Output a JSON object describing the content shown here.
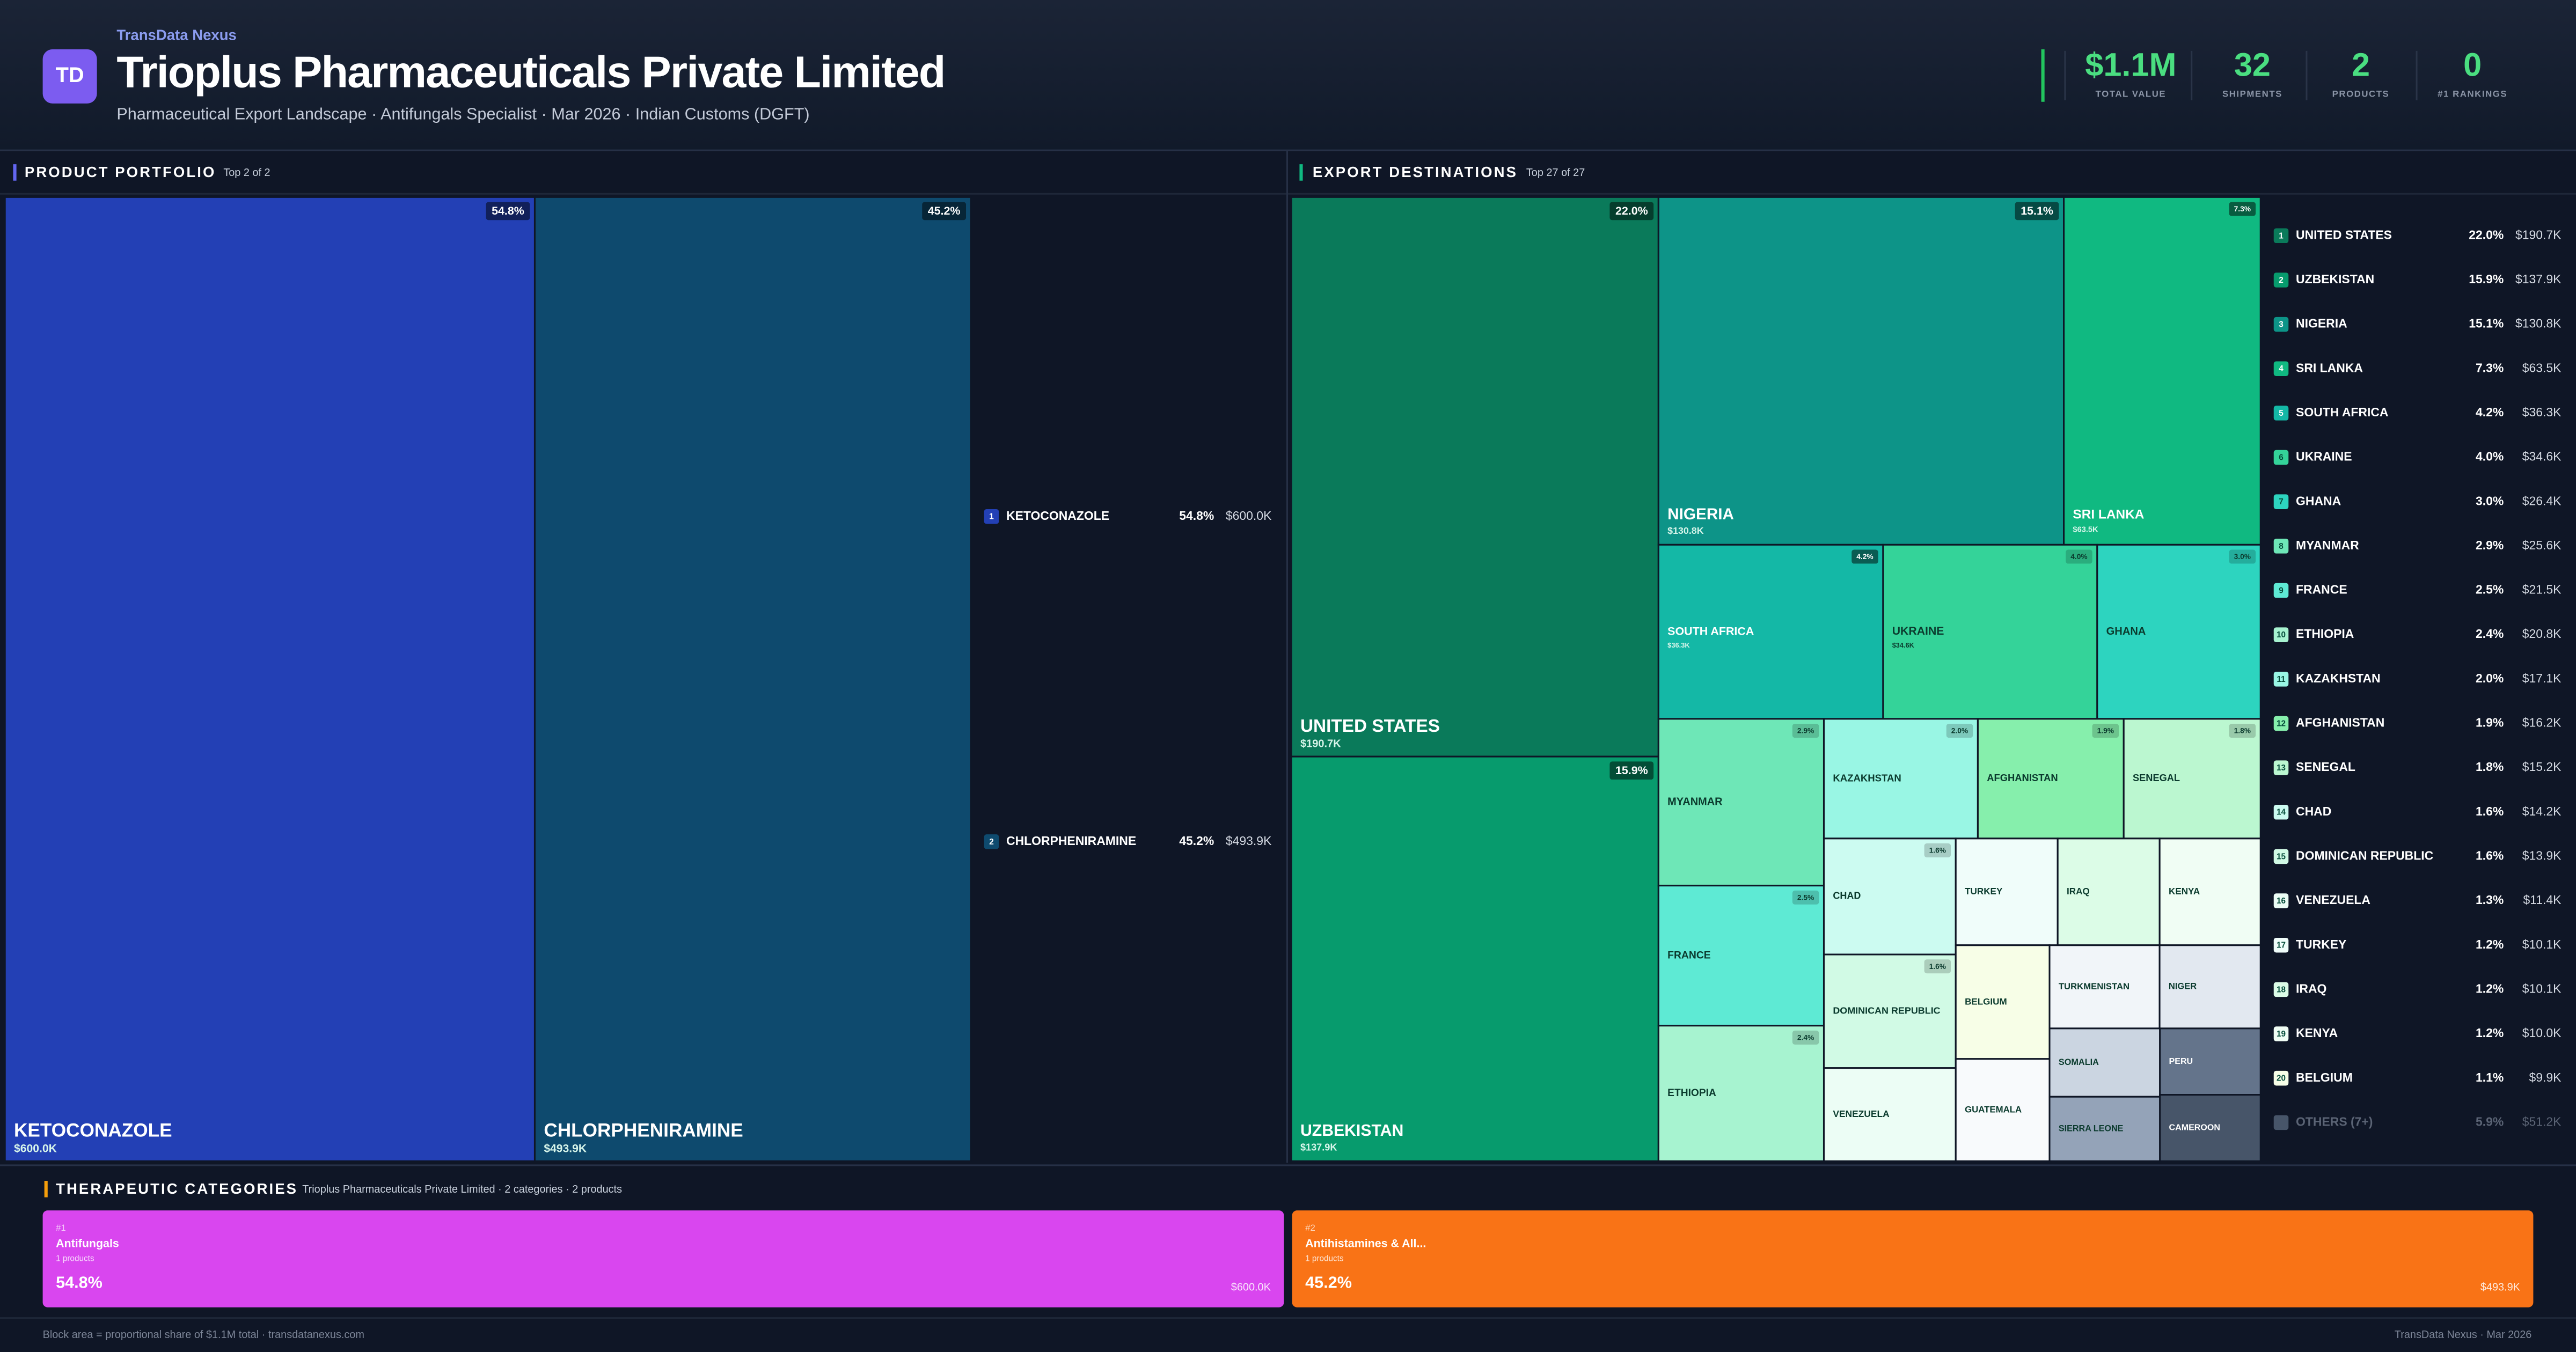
{
  "header": {
    "brand": "TransData Nexus",
    "logo": "TD",
    "title": "Trioplus Pharmaceuticals Private Limited",
    "subtitle": "Pharmaceutical Export Landscape · Antifungals Specialist · Mar 2026 · Indian Customs (DGFT)"
  },
  "kpis": [
    {
      "value": 1100000,
      "value_label": "$1.1M",
      "label": "TOTAL VALUE"
    },
    {
      "value": 32,
      "label": "SHIPMENTS"
    },
    {
      "value": 2,
      "label": "PRODUCTS"
    },
    {
      "value": 0,
      "label": "#1 RANKINGS"
    }
  ],
  "chart_data": [
    {
      "type": "treemap",
      "title": "PRODUCT PORTFOLIO",
      "subtitle": "Top 2 of 2",
      "categories": [
        "KETOCONAZOLE",
        "CHLORPHENIRAMINE"
      ],
      "values": [
        600000,
        493900
      ],
      "value_labels": [
        "$600.0K",
        "$493.9K"
      ],
      "shares": [
        54.8,
        45.2
      ],
      "share_labels": [
        "54.8%",
        "45.2%"
      ],
      "ranks": [
        1,
        2
      ],
      "colors": [
        "#2340b5",
        "#0e4a6e"
      ]
    },
    {
      "type": "treemap",
      "title": "EXPORT DESTINATIONS",
      "subtitle": "Top 27 of 27",
      "categories": [
        "UNITED STATES",
        "UZBEKISTAN",
        "NIGERIA",
        "SRI LANKA",
        "SOUTH AFRICA",
        "UKRAINE",
        "GHANA",
        "MYANMAR",
        "FRANCE",
        "ETHIOPIA",
        "KAZAKHSTAN",
        "AFGHANISTAN",
        "SENEGAL",
        "CHAD",
        "DOMINICAN REPUBLIC",
        "VENEZUELA",
        "TURKEY",
        "IRAQ",
        "KENYA",
        "BELGIUM",
        "GUATEMALA",
        "TURKMENISTAN",
        "NIGER",
        "SOMALIA",
        "SIERRA LEONE",
        "PERU",
        "CAMEROON"
      ],
      "values": [
        190700,
        137900,
        130800,
        63500,
        36300,
        34600,
        26400,
        25600,
        21500,
        20800,
        17100,
        16200,
        15200,
        14200,
        13900,
        11400,
        10100,
        10100,
        10000,
        9900,
        8900,
        8500,
        7800,
        7000,
        6600,
        6200,
        6200
      ],
      "value_labels": [
        "$190.7K",
        "$137.9K",
        "$130.8K",
        "$63.5K",
        "$36.3K",
        "$34.6K",
        "$26.4K",
        "$25.6K",
        "$21.5K",
        "$20.8K",
        "$17.1K",
        "$16.2K",
        "$15.2K",
        "$14.2K",
        "$13.9K",
        "$11.4K",
        "$10.1K",
        "$10.1K",
        "$10.0K",
        "$9.9K",
        null,
        null,
        null,
        null,
        null,
        null,
        null
      ],
      "shares": [
        22.0,
        15.9,
        15.1,
        7.3,
        4.2,
        4.0,
        3.0,
        2.9,
        2.5,
        2.4,
        2.0,
        1.9,
        1.8,
        1.6,
        1.6,
        1.3,
        1.2,
        1.2,
        1.2,
        1.1,
        1.0,
        1.0,
        0.9,
        0.8,
        0.8,
        0.7,
        0.7
      ],
      "share_labels": [
        "22.0%",
        "15.9%",
        "15.1%",
        "7.3%",
        "4.2%",
        "4.0%",
        "3.0%",
        "2.9%",
        "2.5%",
        "2.4%",
        "2.0%",
        "1.9%",
        "1.8%",
        "1.6%",
        "1.6%",
        "1.3%",
        "1.2%",
        "1.2%",
        "1.2%",
        "1.1%",
        null,
        null,
        null,
        null,
        null,
        null,
        null
      ],
      "ranks": [
        1,
        2,
        3,
        4,
        5,
        6,
        7,
        8,
        9,
        10,
        11,
        12,
        13,
        14,
        15,
        16,
        17,
        18,
        19,
        20
      ],
      "colors": [
        "#0a7a5a",
        "#079b6d",
        "#0d9488",
        "#10b981",
        "#14b8a6",
        "#34d399",
        "#2dd4bf",
        "#6ee7b7",
        "#5eead4",
        "#a7f3d0",
        "#99f6e4",
        "#86efac",
        "#bbf7d0",
        "#ccfbf1",
        "#d1fae5",
        "#ecfdf5",
        "#f0fdfa",
        "#dcfce7",
        "#f0fdf4",
        "#f7fee7",
        "#f8fafc",
        "#f1f5f9",
        "#e2e8f0",
        "#cbd5e1",
        "#94a3b8",
        "#64748b",
        "#475569"
      ],
      "others": {
        "label": "OTHERS (7+)",
        "share": 5.9,
        "share_label": "5.9%",
        "value": 51200,
        "value_label": "$51.2K"
      }
    },
    {
      "type": "cards",
      "title": "THERAPEUTIC CATEGORIES",
      "subtitle": "Trioplus Pharmaceuticals Private Limited · 2 categories · 2 products",
      "rank_labels": [
        "#1",
        "#2"
      ],
      "categories": [
        "Antifungals",
        "Antihistamines & All..."
      ],
      "counts": [
        1,
        1
      ],
      "count_labels": [
        "1 products",
        "1 products"
      ],
      "values": [
        600000,
        493900
      ],
      "value_labels": [
        "$600.0K",
        "$493.9K"
      ],
      "shares": [
        54.8,
        45.2
      ],
      "share_labels": [
        "54.8%",
        "45.2%"
      ],
      "colors": [
        "#d946ef",
        "#f97316"
      ]
    }
  ],
  "footer": {
    "left": "Block area = proportional share of $1.1M total · transdatanexus.com",
    "right": "TransData Nexus · Mar 2026"
  }
}
